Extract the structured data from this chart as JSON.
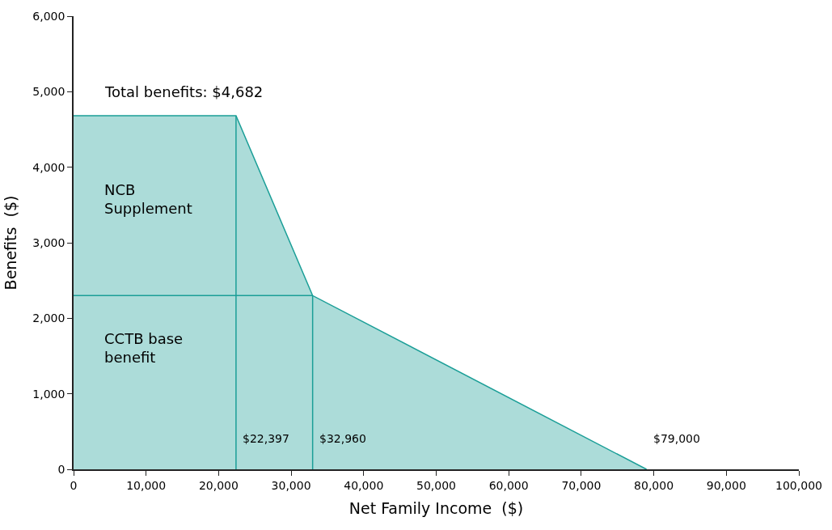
{
  "chart_data": {
    "type": "area",
    "xlabel": "Net Family Income  ($)",
    "ylabel": "Benefits  ($)",
    "series": [
      {
        "color": "#1a9e97",
        "x": [
          0,
          22397,
          32960,
          79000
        ],
        "values": [
          4682,
          4682,
          2300,
          0
        ]
      },
      {
        "type": "line",
        "color": "#1a9e97",
        "x": [
          22397,
          22397
        ],
        "values": [
          0,
          4682
        ]
      },
      {
        "type": "line",
        "color": "#1a9e97",
        "x": [
          32960,
          32960
        ],
        "values": [
          0,
          2300
        ]
      },
      {
        "type": "line",
        "color": "#1a9e97",
        "x": [
          0,
          32960
        ],
        "values": [
          2300,
          2300
        ]
      }
    ],
    "xlim": [
      0,
      100000
    ],
    "xticks": [
      {
        "value": 0,
        "label": "0"
      },
      {
        "value": 10000,
        "label": "10,000"
      },
      {
        "value": 20000,
        "label": "20,000"
      },
      {
        "value": 30000,
        "label": "30,000"
      },
      {
        "value": 40000,
        "label": "40,000"
      },
      {
        "value": 50000,
        "label": "50,000"
      },
      {
        "value": 60000,
        "label": "60,000"
      },
      {
        "value": 70000,
        "label": "70,000"
      },
      {
        "value": 80000,
        "label": "80,000"
      },
      {
        "value": 90000,
        "label": "90,000"
      },
      {
        "value": 100000,
        "label": "100,000"
      }
    ],
    "ylim": [
      0,
      6000
    ],
    "yticks": [
      {
        "value": 0,
        "label": "0"
      },
      {
        "value": 1000,
        "label": "1,000"
      },
      {
        "value": 2000,
        "label": "2,000"
      },
      {
        "value": 3000,
        "label": "3,000"
      },
      {
        "value": 4000,
        "label": "4,000"
      },
      {
        "value": 5000,
        "label": "5,000"
      },
      {
        "value": 6000,
        "label": "6,000"
      }
    ],
    "annotations": [
      "Total benefits: $4,682",
      "NCB\nSupplement",
      "CCTB base\nbenefit",
      {
        "text": "$22,397",
        "x": 22397,
        "y": 0
      },
      {
        "text": "$32,960",
        "x": 32960,
        "y": 0
      },
      {
        "text": "$79,000",
        "x": 79000,
        "y": 0
      }
    ]
  }
}
